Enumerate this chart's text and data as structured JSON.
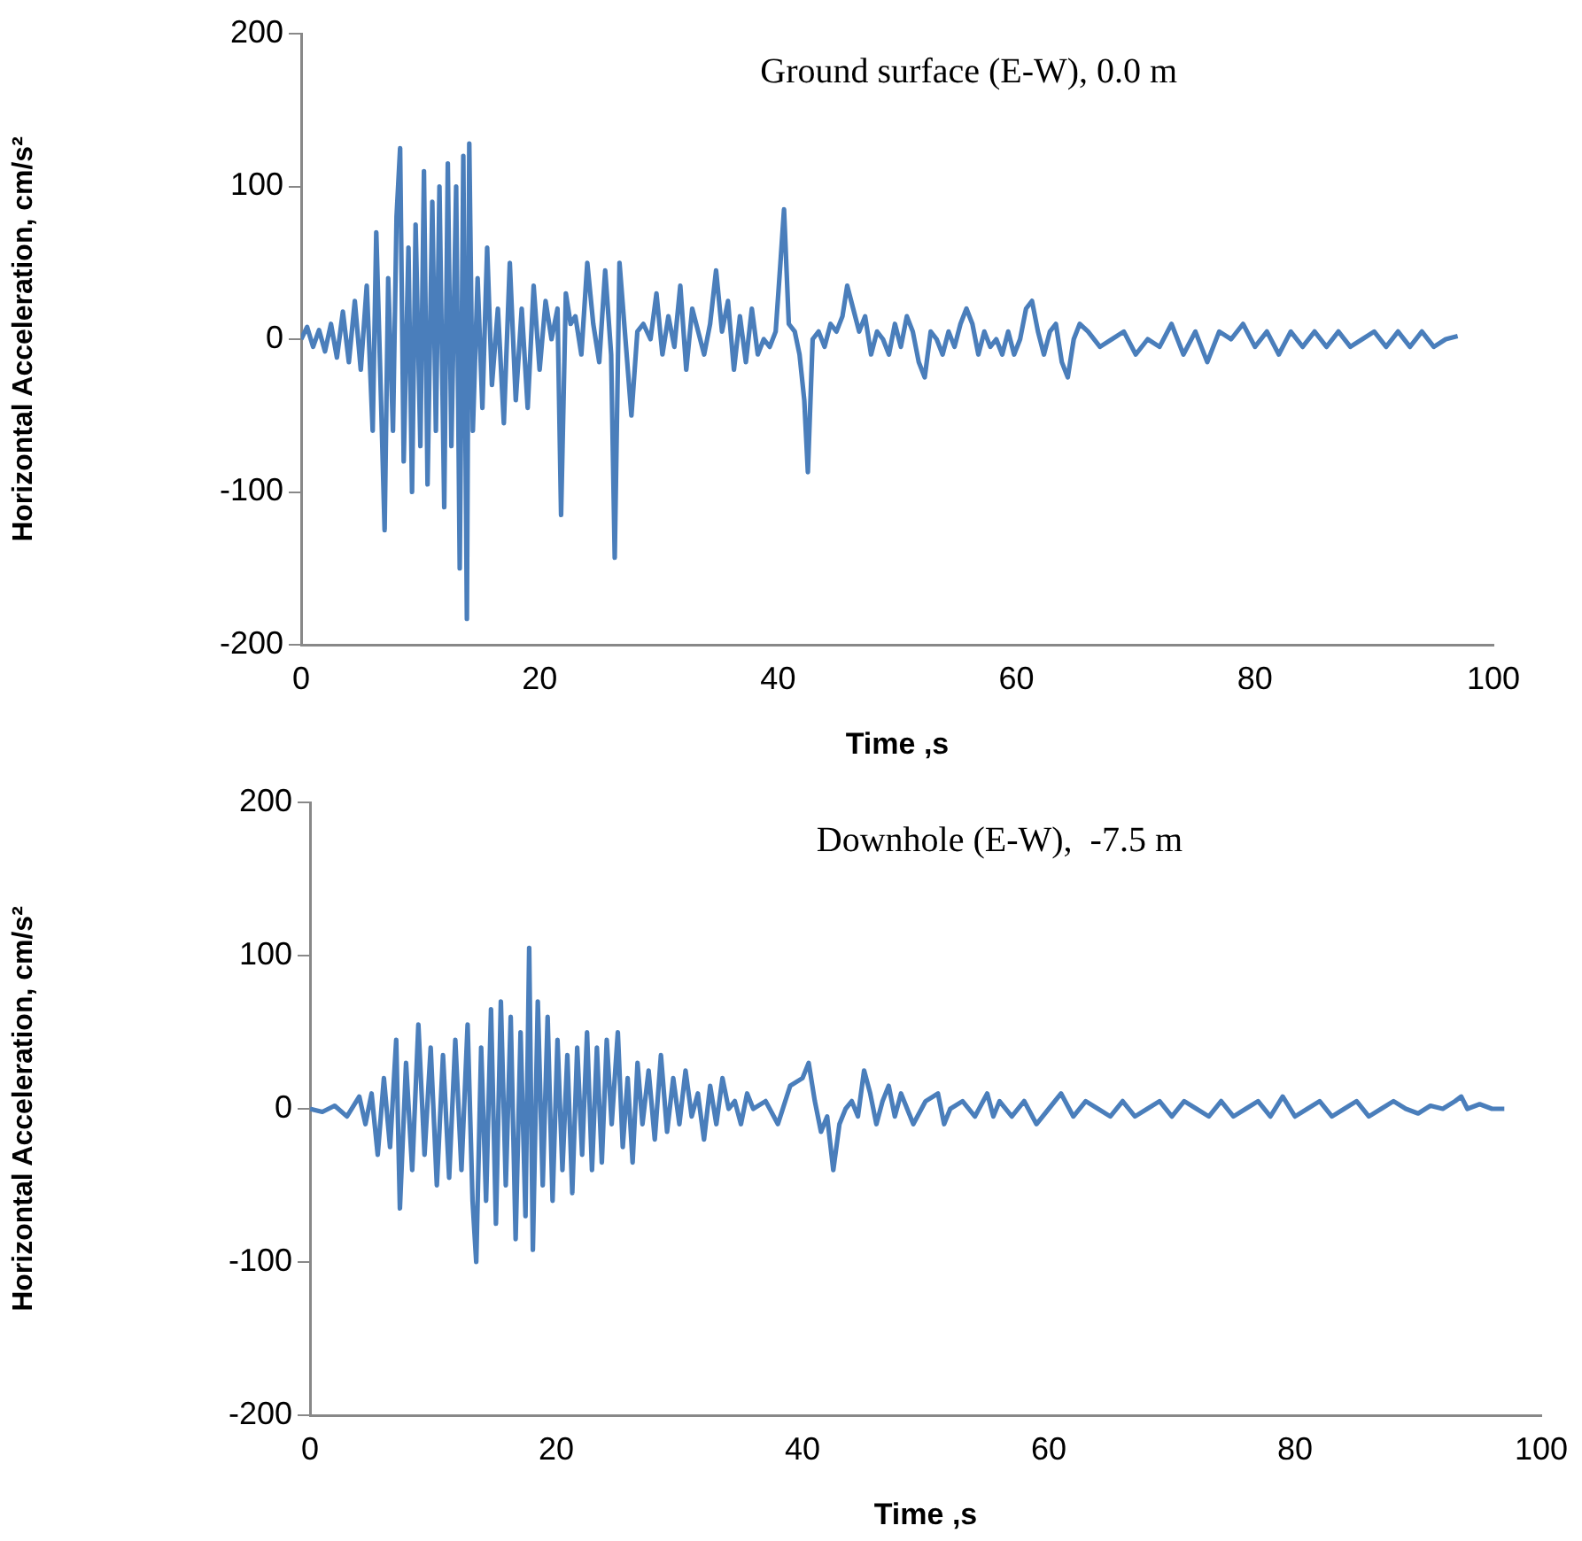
{
  "chart_data": [
    {
      "type": "line",
      "title": "Ground surface (E-W), 0.0 m",
      "xlabel": "Time ,s",
      "ylabel": "Horizontal Acceleration, cm/s²",
      "marker": "none",
      "xlim": [
        0,
        100
      ],
      "xticks": [
        0,
        20,
        40,
        60,
        80,
        100
      ],
      "ylim": [
        -200,
        200
      ],
      "yticks": [
        -200,
        -100,
        0,
        100,
        200
      ],
      "series": [
        {
          "color": "#4a7ebb",
          "x": [
            0,
            0.5,
            1,
            1.5,
            2,
            2.5,
            3,
            3.5,
            4,
            4.5,
            5,
            5.5,
            6,
            6.3,
            6.7,
            7,
            7.3,
            7.7,
            8,
            8.3,
            8.6,
            9,
            9.3,
            9.6,
            10,
            10.3,
            10.6,
            11,
            11.3,
            11.6,
            12,
            12.3,
            12.6,
            13,
            13.3,
            13.6,
            13.9,
            14.1,
            14.4,
            14.8,
            15.2,
            15.6,
            16,
            16.5,
            17,
            17.5,
            18,
            18.5,
            19,
            19.5,
            20,
            20.5,
            21,
            21.5,
            21.8,
            22.2,
            22.6,
            23,
            23.5,
            24,
            24.5,
            25,
            25.5,
            26,
            26.3,
            26.7,
            27.2,
            27.7,
            28.2,
            28.7,
            29.3,
            29.8,
            30.3,
            30.8,
            31.3,
            31.8,
            32.3,
            32.8,
            33.3,
            33.8,
            34.3,
            34.8,
            35.3,
            35.8,
            36.3,
            36.8,
            37.3,
            37.8,
            38.3,
            38.8,
            39.3,
            39.8,
            40.2,
            40.5,
            40.9,
            41.4,
            41.8,
            42.2,
            42.5,
            42.9,
            43.4,
            43.9,
            44.4,
            44.9,
            45.4,
            45.8,
            46.3,
            46.8,
            47.3,
            47.8,
            48.3,
            48.8,
            49.3,
            49.8,
            50.3,
            50.8,
            51.3,
            51.8,
            52.3,
            52.8,
            53.3,
            53.8,
            54.3,
            54.8,
            55.3,
            55.8,
            56.3,
            56.8,
            57.3,
            57.8,
            58.3,
            58.8,
            59.3,
            59.8,
            60.3,
            60.8,
            61.3,
            61.8,
            62.3,
            62.8,
            63.3,
            63.8,
            64.3,
            64.8,
            65.3,
            66,
            67,
            68,
            69,
            70,
            71,
            72,
            73,
            74,
            75,
            76,
            77,
            78,
            79,
            80,
            81,
            82,
            83,
            84,
            85,
            86,
            87,
            88,
            89,
            90,
            91,
            92,
            93,
            94,
            95,
            96,
            97
          ],
          "values": [
            0,
            8,
            -5,
            6,
            -8,
            10,
            -12,
            18,
            -15,
            25,
            -20,
            35,
            -60,
            70,
            -40,
            -125,
            40,
            -60,
            80,
            125,
            -80,
            60,
            -100,
            75,
            -70,
            110,
            -95,
            90,
            -60,
            100,
            -110,
            115,
            -70,
            100,
            -150,
            120,
            -183,
            128,
            -60,
            40,
            -45,
            60,
            -30,
            20,
            -55,
            50,
            -40,
            20,
            -45,
            35,
            -20,
            25,
            0,
            20,
            -115,
            30,
            10,
            15,
            -10,
            50,
            10,
            -15,
            45,
            -10,
            -143,
            50,
            0,
            -50,
            5,
            10,
            0,
            30,
            -10,
            15,
            -5,
            35,
            -20,
            20,
            5,
            -10,
            10,
            45,
            5,
            25,
            -20,
            15,
            -15,
            20,
            -10,
            0,
            -5,
            5,
            50,
            85,
            10,
            5,
            -10,
            -40,
            -87,
            0,
            5,
            -5,
            10,
            5,
            15,
            35,
            20,
            5,
            15,
            -10,
            5,
            0,
            -10,
            10,
            -5,
            15,
            5,
            -15,
            -25,
            5,
            0,
            -10,
            5,
            -5,
            10,
            20,
            10,
            -10,
            5,
            -5,
            0,
            -10,
            5,
            -10,
            0,
            20,
            25,
            5,
            -10,
            5,
            10,
            -15,
            -25,
            0,
            10,
            5,
            -5,
            0,
            5,
            -10,
            0,
            -5,
            10,
            -10,
            5,
            -15,
            5,
            0,
            10,
            -5,
            5,
            -10,
            5,
            -5,
            5,
            -5,
            5,
            -5,
            0,
            5,
            -5,
            5,
            -5,
            5,
            -5,
            0,
            2
          ]
        }
      ]
    },
    {
      "type": "line",
      "title": "Downhole (E-W),  -7.5 m",
      "xlabel": "Time ,s",
      "ylabel": "Horizontal Acceleration, cm/s²",
      "marker": "none",
      "xlim": [
        0,
        100
      ],
      "xticks": [
        0,
        20,
        40,
        60,
        80,
        100
      ],
      "ylim": [
        -200,
        200
      ],
      "yticks": [
        -200,
        -100,
        0,
        100,
        200
      ],
      "series": [
        {
          "color": "#4a7ebb",
          "x": [
            0,
            1,
            2,
            3,
            4,
            4.5,
            5,
            5.5,
            6,
            6.5,
            7,
            7.3,
            7.8,
            8.3,
            8.8,
            9.3,
            9.8,
            10.3,
            10.8,
            11.3,
            11.8,
            12.3,
            12.8,
            13.2,
            13.5,
            13.9,
            14.3,
            14.7,
            15.1,
            15.5,
            15.9,
            16.3,
            16.7,
            17.1,
            17.5,
            17.8,
            18.1,
            18.5,
            18.9,
            19.3,
            19.7,
            20.1,
            20.5,
            20.9,
            21.3,
            21.7,
            22.1,
            22.5,
            22.9,
            23.3,
            23.7,
            24.1,
            24.5,
            25,
            25.4,
            25.8,
            26.2,
            26.6,
            27,
            27.5,
            28,
            28.5,
            29,
            29.5,
            30,
            30.5,
            31,
            31.5,
            32,
            32.5,
            33,
            33.5,
            34,
            34.5,
            35,
            35.5,
            36,
            37,
            38,
            39,
            40,
            40.5,
            41,
            41.5,
            42,
            42.5,
            43,
            43.5,
            44,
            44.5,
            45,
            45.5,
            46,
            46.5,
            47,
            47.5,
            48,
            48.5,
            49,
            50,
            51,
            51.5,
            52,
            53,
            54,
            55,
            55.5,
            56,
            57,
            58,
            59,
            60,
            61,
            62,
            63,
            64,
            65,
            66,
            67,
            68,
            69,
            70,
            71,
            72,
            73,
            74,
            75,
            76,
            77,
            78,
            79,
            80,
            81,
            82,
            83,
            84,
            85,
            86,
            87,
            88,
            89,
            90,
            91,
            92,
            93,
            93.5,
            94,
            95,
            96,
            97
          ],
          "values": [
            0,
            -2,
            2,
            -5,
            8,
            -10,
            10,
            -30,
            20,
            -25,
            45,
            -65,
            30,
            -40,
            55,
            -30,
            40,
            -50,
            35,
            -45,
            45,
            -40,
            55,
            -60,
            -100,
            40,
            -60,
            65,
            -75,
            70,
            -50,
            60,
            -85,
            50,
            -70,
            105,
            -92,
            70,
            -50,
            60,
            -60,
            45,
            -40,
            35,
            -55,
            40,
            -30,
            50,
            -40,
            40,
            -35,
            45,
            -10,
            50,
            -25,
            20,
            -35,
            30,
            -10,
            25,
            -20,
            35,
            -15,
            20,
            -10,
            25,
            -5,
            10,
            -20,
            15,
            -10,
            20,
            0,
            5,
            -10,
            10,
            0,
            5,
            -10,
            15,
            20,
            30,
            5,
            -15,
            -5,
            -40,
            -10,
            0,
            5,
            -5,
            25,
            10,
            -10,
            5,
            15,
            -5,
            10,
            0,
            -10,
            5,
            10,
            -10,
            0,
            5,
            -5,
            10,
            -5,
            5,
            -5,
            5,
            -10,
            0,
            10,
            -5,
            5,
            0,
            -5,
            5,
            -5,
            0,
            5,
            -5,
            5,
            0,
            -5,
            5,
            -5,
            0,
            5,
            -5,
            8,
            -5,
            0,
            5,
            -5,
            0,
            5,
            -5,
            0,
            5,
            0,
            -3,
            2,
            0,
            5,
            8,
            0,
            3,
            0,
            0
          ]
        }
      ]
    }
  ]
}
